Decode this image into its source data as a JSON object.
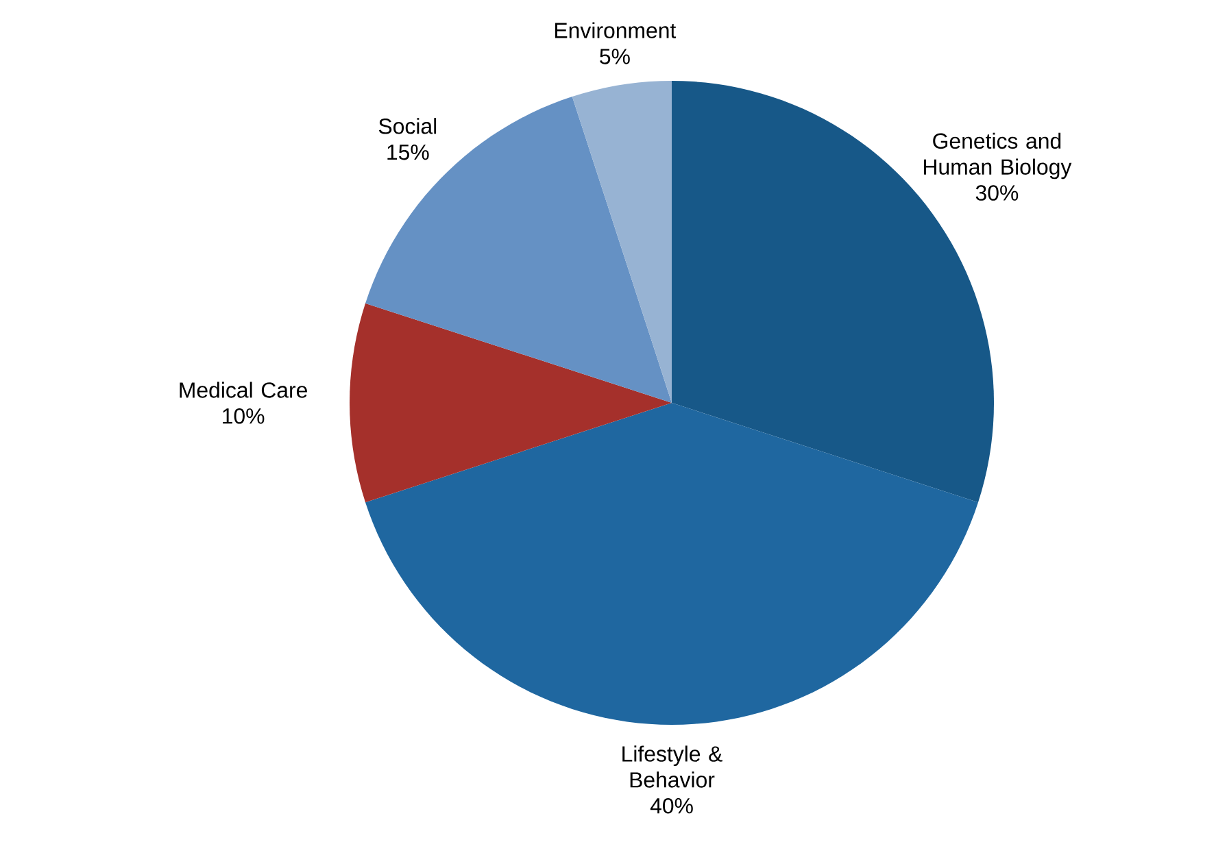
{
  "chart_data": {
    "type": "pie",
    "categories": [
      "Genetics and Human Biology",
      "Lifestyle & Behavior",
      "Medical Care",
      "Social",
      "Environment"
    ],
    "values": [
      30,
      40,
      10,
      15,
      5
    ],
    "value_labels": [
      "30%",
      "40%",
      "10%",
      "15%",
      "5%"
    ],
    "colors": [
      "#175888",
      "#1f67a0",
      "#a5302b",
      "#6591c4",
      "#97b3d3"
    ]
  }
}
